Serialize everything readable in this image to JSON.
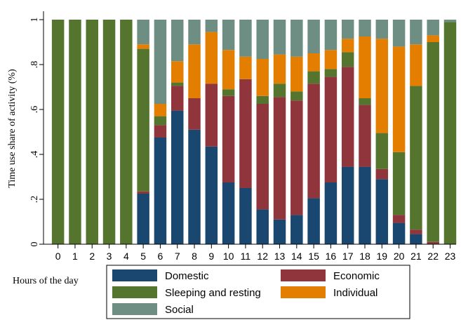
{
  "chart_data": {
    "type": "bar",
    "stacked": true,
    "title": "",
    "xlabel": "Hours of the day",
    "ylabel": "Time use share of activity (%)",
    "ylim": [
      0,
      1
    ],
    "yticks": [
      0,
      0.2,
      0.4,
      0.6,
      0.8,
      1
    ],
    "ytick_labels": [
      "0",
      ".2",
      ".4",
      ".6",
      ".8",
      "1"
    ],
    "grid": false,
    "legend_placement": "bottom",
    "categories": [
      "0",
      "1",
      "2",
      "3",
      "4",
      "5",
      "6",
      "7",
      "8",
      "9",
      "10",
      "11",
      "12",
      "13",
      "14",
      "15",
      "16",
      "17",
      "18",
      "19",
      "20",
      "21",
      "22",
      "23"
    ],
    "series": [
      {
        "name": "Domestic",
        "color": "#1a476f",
        "values": [
          0,
          0,
          0,
          0,
          0,
          0.225,
          0.475,
          0.595,
          0.51,
          0.435,
          0.275,
          0.25,
          0.155,
          0.11,
          0.13,
          0.205,
          0.275,
          0.345,
          0.345,
          0.29,
          0.095,
          0.045,
          0,
          0
        ]
      },
      {
        "name": "Economic",
        "color": "#90353b",
        "values": [
          0,
          0,
          0,
          0,
          0,
          0.01,
          0.055,
          0.11,
          0.14,
          0.28,
          0.385,
          0.485,
          0.47,
          0.545,
          0.51,
          0.51,
          0.47,
          0.445,
          0.275,
          0.045,
          0.035,
          0.02,
          0.01,
          0
        ]
      },
      {
        "name": "Sleeping and resting",
        "color": "#55752f",
        "values": [
          1,
          1,
          1,
          1,
          1,
          0.635,
          0.04,
          0.015,
          0,
          0,
          0.03,
          0,
          0.035,
          0.06,
          0.04,
          0.055,
          0.035,
          0.065,
          0.03,
          0.16,
          0.28,
          0.64,
          0.89,
          0.99
        ]
      },
      {
        "name": "Individual",
        "color": "#e37e00",
        "values": [
          0,
          0,
          0,
          0,
          0,
          0.02,
          0.055,
          0.095,
          0.24,
          0.23,
          0.175,
          0.1,
          0.165,
          0.13,
          0.155,
          0.08,
          0.085,
          0.06,
          0.275,
          0.42,
          0.47,
          0.185,
          0.03,
          0
        ]
      },
      {
        "name": "Social",
        "color": "#6e8e84",
        "values": [
          0,
          0,
          0,
          0,
          0,
          0.11,
          0.375,
          0.185,
          0.11,
          0.055,
          0.135,
          0.165,
          0.175,
          0.155,
          0.165,
          0.15,
          0.135,
          0.085,
          0.075,
          0.085,
          0.12,
          0.11,
          0.07,
          0.01
        ]
      }
    ]
  }
}
